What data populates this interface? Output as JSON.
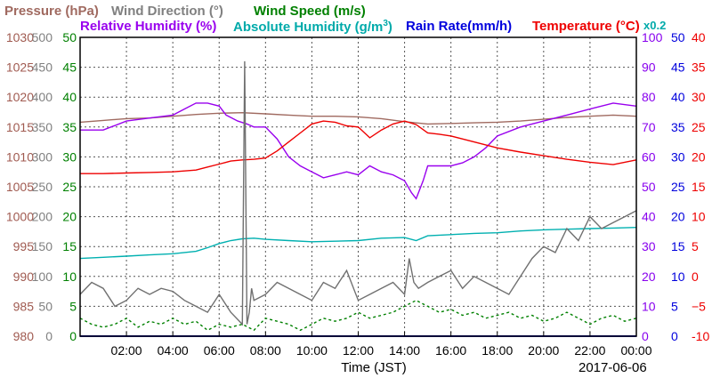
{
  "chart_data": {
    "type": "line",
    "legend": {
      "pressure": "Pressure (hPa)",
      "wind_direction": "Wind Direction (°)",
      "wind_speed": "Wind Speed (m/s)",
      "relative_humidity": "Relative Humidity (%)",
      "absolute_humidity_prefix": "Absolute Humidity (g/m",
      "absolute_humidity_sup": "3",
      "absolute_humidity_suffix": ")",
      "rain_rate": "Rain Rate(mm/h)",
      "temperature": "Temperature (°C)",
      "rain_scale_note": "x0.2"
    },
    "xlabel": "Time (JST)",
    "date": "2017-06-06",
    "x_ticks": [
      "02:00",
      "04:00",
      "06:00",
      "08:00",
      "10:00",
      "12:00",
      "14:00",
      "16:00",
      "18:00",
      "20:00",
      "22:00",
      "00:00"
    ],
    "xlim": [
      0,
      24
    ],
    "grid": true,
    "axes": {
      "pressure": {
        "range": [
          980,
          1030
        ],
        "ticks": [
          "980",
          "985",
          "990",
          "995",
          "1000",
          "1005",
          "1010",
          "1015",
          "1020",
          "1025",
          "1030"
        ],
        "color": "#a05a50"
      },
      "wind_direction": {
        "range": [
          0,
          500
        ],
        "ticks": [
          "0",
          "50",
          "100",
          "150",
          "200",
          "250",
          "300",
          "350",
          "400",
          "450",
          "500"
        ],
        "color": "#808080"
      },
      "wind_speed": {
        "range": [
          0,
          50
        ],
        "ticks": [
          "0",
          "5",
          "10",
          "15",
          "20",
          "25",
          "30",
          "35",
          "40",
          "45",
          "50"
        ],
        "color": "#008000"
      },
      "relative_humidity": {
        "range": [
          0,
          100
        ],
        "ticks": [
          "0",
          "10",
          "20",
          "30",
          "40",
          "50",
          "60",
          "70",
          "80",
          "90",
          "100"
        ],
        "color": "#8800ee"
      },
      "rain_rate": {
        "range": [
          0,
          50
        ],
        "ticks": [
          "0",
          "5",
          "10",
          "15",
          "20",
          "25",
          "30",
          "35",
          "40",
          "45",
          "50"
        ],
        "color": "#0000dd"
      },
      "temperature": {
        "range": [
          -10,
          40
        ],
        "ticks": [
          "-10",
          "−5",
          "0",
          "5",
          "10",
          "15",
          "20",
          "25",
          "30",
          "35",
          "40"
        ],
        "color": "#ee0000"
      }
    },
    "series": [
      {
        "name": "Pressure",
        "color": "#a06a60",
        "x": [
          0,
          1,
          2,
          3,
          4,
          5,
          6,
          7,
          8,
          9,
          10,
          11,
          12,
          13,
          14,
          15,
          16,
          17,
          18,
          19,
          20,
          21,
          22,
          23,
          24
        ],
        "y": [
          1015.8,
          1016.1,
          1016.4,
          1016.5,
          1016.8,
          1017.1,
          1017.3,
          1017.4,
          1017.2,
          1017.0,
          1016.8,
          1016.8,
          1016.7,
          1016.4,
          1015.9,
          1015.5,
          1015.6,
          1015.7,
          1015.8,
          1016.0,
          1016.3,
          1016.6,
          1016.8,
          1017.0,
          1016.8
        ]
      },
      {
        "name": "Relative Humidity",
        "color": "#9900ee",
        "x": [
          0,
          1,
          2,
          3,
          4,
          4.5,
          5,
          5.5,
          6,
          6.3,
          6.8,
          7.2,
          7.5,
          8,
          8.5,
          9,
          9.5,
          10,
          10.5,
          11,
          11.5,
          12,
          12.5,
          13,
          13.5,
          14,
          14.3,
          14.5,
          14.8,
          15,
          15.5,
          16,
          16.5,
          17,
          17.5,
          18,
          19,
          20,
          21,
          22,
          23,
          24
        ],
        "y": [
          69,
          69,
          72,
          73,
          74,
          76,
          78,
          78,
          77,
          74,
          72,
          71,
          70,
          70,
          66,
          60,
          57,
          55,
          53,
          54,
          55,
          54,
          57,
          55,
          54,
          52,
          48,
          46,
          52,
          57,
          57,
          57,
          58,
          60,
          63,
          67,
          70,
          72,
          74,
          76,
          78,
          77
        ]
      },
      {
        "name": "Absolute Humidity",
        "color": "#00b0b0",
        "x": [
          0,
          1,
          2,
          3,
          4,
          4.5,
          5,
          5.5,
          6,
          6.5,
          7,
          7.5,
          8,
          9,
          10,
          11,
          12,
          13,
          14,
          14.5,
          15,
          16,
          17,
          18,
          19,
          20,
          21,
          22,
          23,
          24
        ],
        "y": [
          13.0,
          13.2,
          13.4,
          13.6,
          13.8,
          14.0,
          14.2,
          14.8,
          15.5,
          16.0,
          16.3,
          16.4,
          16.2,
          16.0,
          15.8,
          15.9,
          16.0,
          16.4,
          16.5,
          16.0,
          16.8,
          17.0,
          17.2,
          17.3,
          17.6,
          17.8,
          17.9,
          18.0,
          18.1,
          18.2
        ]
      },
      {
        "name": "Temperature",
        "color": "#ee0000",
        "x": [
          0,
          1,
          2,
          3,
          4,
          5,
          5.5,
          6,
          6.5,
          7,
          7.5,
          8,
          8.5,
          9,
          9.5,
          10,
          10.5,
          11,
          11.5,
          12,
          12.5,
          13,
          13.5,
          14,
          14.5,
          15,
          15.5,
          16,
          17,
          18,
          19,
          20,
          21,
          22,
          23,
          24
        ],
        "y": [
          17.2,
          17.2,
          17.3,
          17.4,
          17.5,
          17.8,
          18.3,
          18.8,
          19.3,
          19.5,
          19.6,
          19.8,
          21.0,
          22.5,
          24.0,
          25.5,
          26.0,
          25.8,
          25.2,
          25.0,
          23.2,
          24.5,
          25.5,
          26.0,
          25.4,
          24.0,
          23.8,
          23.5,
          22.5,
          21.5,
          20.8,
          20.2,
          19.6,
          19.1,
          18.7,
          19.5
        ]
      },
      {
        "name": "Wind Direction",
        "color": "#707070",
        "x": [
          0,
          0.5,
          1,
          1.5,
          2,
          2.5,
          3,
          3.5,
          4,
          4.5,
          5,
          5.5,
          6,
          6.5,
          7,
          7.1,
          7.2,
          7.3,
          7.4,
          7.5,
          8,
          8.5,
          9,
          9.5,
          10,
          10.5,
          11,
          11.5,
          12,
          12.5,
          13,
          13.5,
          14,
          14.2,
          14.4,
          14.6,
          15,
          15.5,
          16,
          16.5,
          17,
          17.5,
          18,
          18.5,
          19,
          19.5,
          20,
          20.5,
          21,
          21.5,
          22,
          22.5,
          23,
          23.5,
          24
        ],
        "y": [
          70,
          90,
          80,
          50,
          60,
          80,
          70,
          80,
          75,
          60,
          50,
          40,
          70,
          40,
          20,
          460,
          20,
          40,
          80,
          60,
          70,
          90,
          80,
          70,
          60,
          90,
          80,
          110,
          60,
          70,
          80,
          90,
          70,
          130,
          90,
          80,
          90,
          100,
          110,
          80,
          100,
          90,
          80,
          70,
          100,
          130,
          150,
          140,
          180,
          160,
          200,
          180,
          190,
          200,
          210
        ]
      },
      {
        "name": "Wind Speed",
        "color": "#008000",
        "x": [
          0,
          0.5,
          1,
          1.5,
          2,
          2.5,
          3,
          3.5,
          4,
          4.5,
          5,
          5.5,
          6,
          6.5,
          7,
          7.5,
          8,
          8.5,
          9,
          9.5,
          10,
          10.5,
          11,
          11.5,
          12,
          12.5,
          13,
          13.5,
          14,
          14.5,
          15,
          15.5,
          16,
          16.5,
          17,
          17.5,
          18,
          18.5,
          19,
          19.5,
          20,
          20.5,
          21,
          21.5,
          22,
          22.5,
          23,
          23.5,
          24
        ],
        "y": [
          3,
          2,
          1.5,
          2,
          3,
          1.5,
          2.5,
          2,
          3,
          2,
          2.5,
          1,
          2,
          1.5,
          2,
          1,
          3,
          2.5,
          2,
          1,
          2,
          3,
          2.5,
          3,
          4,
          3,
          3.5,
          4,
          5,
          6,
          5,
          4,
          4.5,
          3.5,
          4,
          3,
          3.5,
          4,
          3,
          3.5,
          2.5,
          3,
          4,
          3,
          2,
          3,
          3.5,
          2.5,
          3
        ]
      },
      {
        "name": "Rain Rate",
        "color": "#0000dd",
        "x": [
          0,
          24
        ],
        "y": [
          0,
          0
        ]
      }
    ]
  }
}
